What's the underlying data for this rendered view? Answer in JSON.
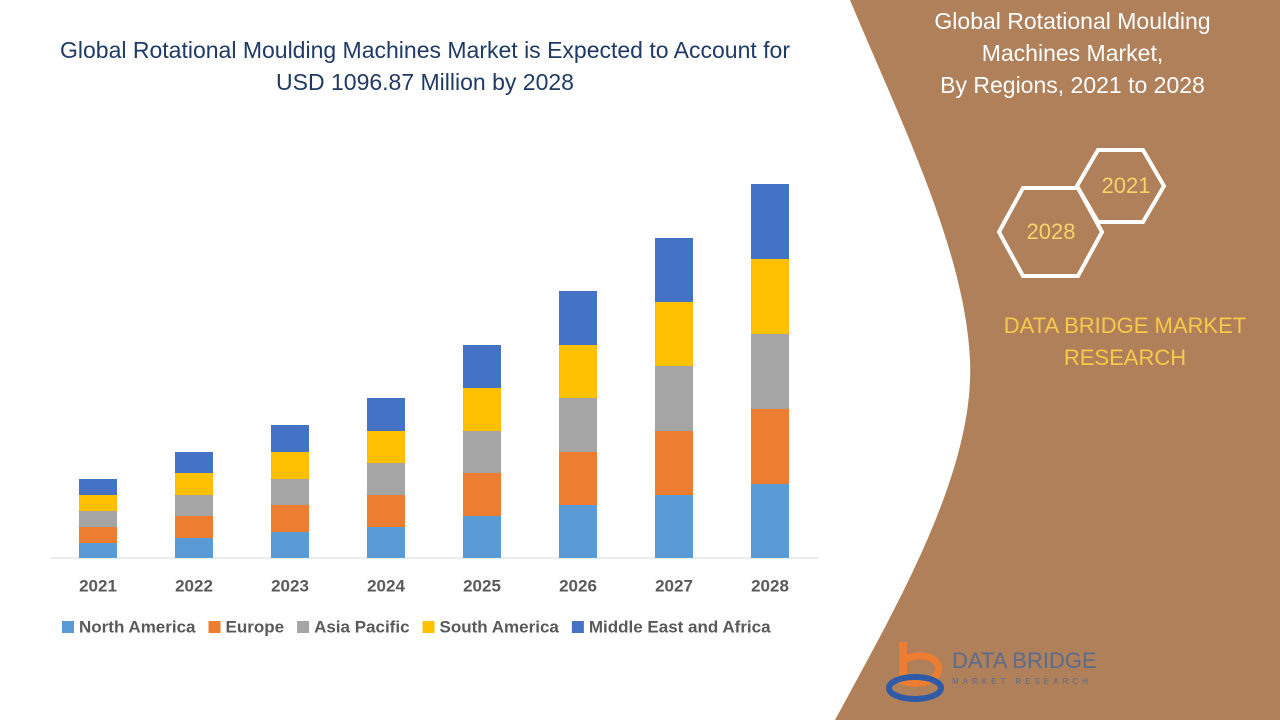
{
  "chart_data": {
    "type": "stacked-bar",
    "title": "Global Rotational Moulding Machines Market is Expected to Account for USD 1096.87 Million by 2028",
    "categories": [
      "2021",
      "2022",
      "2023",
      "2024",
      "2025",
      "2026",
      "2027",
      "2028"
    ],
    "series": [
      {
        "name": "North America",
        "color": "#5b9bd5",
        "values": [
          15,
          20,
          26,
          31,
          42,
          53,
          63,
          74
        ]
      },
      {
        "name": "Europe",
        "color": "#ed7d31",
        "values": [
          16,
          22,
          27,
          32,
          43,
          53,
          64,
          75
        ]
      },
      {
        "name": "Asia Pacific",
        "color": "#a5a5a5",
        "values": [
          16,
          21,
          26,
          32,
          42,
          54,
          65,
          75
        ]
      },
      {
        "name": "South America",
        "color": "#ffc000",
        "values": [
          16,
          22,
          27,
          32,
          43,
          53,
          64,
          75
        ]
      },
      {
        "name": "Middle East and Africa",
        "color": "#4472c4",
        "values": [
          16,
          21,
          27,
          33,
          43,
          54,
          64,
          75
        ]
      }
    ],
    "ylim": [
      0,
      380
    ],
    "legend": "bottom"
  },
  "side_panel": {
    "title_lines": [
      "Global Rotational Moulding",
      "Machines Market,",
      "By Regions, 2021 to 2028"
    ],
    "hexagons": [
      "2021",
      "2028"
    ],
    "brand_lines": [
      "DATA BRIDGE MARKET",
      "RESEARCH"
    ],
    "logo": {
      "name": "DATA BRIDGE",
      "tagline": "MARKET RESEARCH"
    }
  }
}
